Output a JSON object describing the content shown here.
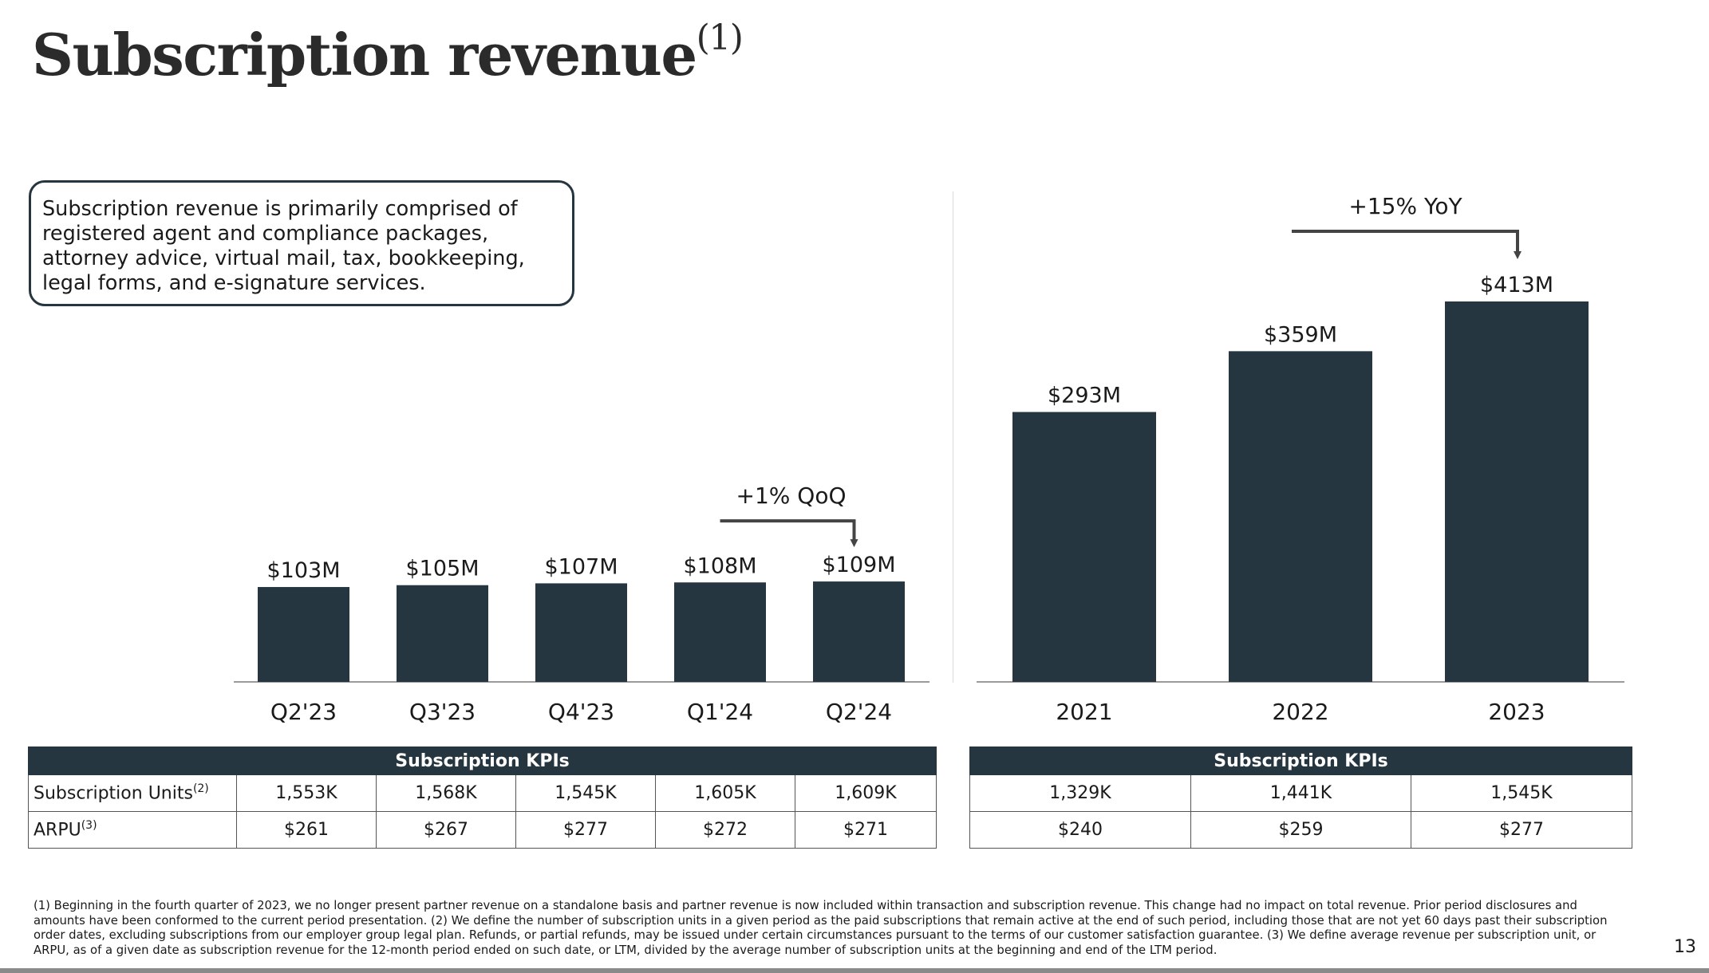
{
  "slide": {
    "title": "Subscription revenue",
    "title_note": "(1)",
    "description_lines": [
      "Subscription revenue is primarily comprised of",
      "registered agent and compliance packages,",
      "attorney advice, virtual mail, tax, bookkeeping,",
      "legal forms, and e-signature services."
    ],
    "page_number": "13",
    "footnote": "(1) Beginning in the fourth quarter of 2023, we no longer present partner revenue on a standalone basis and partner revenue is now included within transaction and subscription revenue. This change had no impact on total revenue. Prior period disclosures and amounts have been conformed to the current period presentation. (2) We define the number of subscription units in a given period as the paid subscriptions that remain active at the end of such period, including those that are not yet 60 days past their subscription order dates, excluding subscriptions from our employer group legal plan. Refunds, or partial refunds, may be issued under certain circumstances pursuant to the terms of our customer satisfaction guarantee. (3) We define average revenue per subscription unit, or ARPU, as of a given date as subscription revenue for the 12-month period ended on such date, or LTM, divided by the average number of subscription units at the beginning and end of the LTM period."
  },
  "colors": {
    "bar": "#263640",
    "text": "#1a1a1a",
    "axis": "#9a9a9a"
  },
  "chart_data": [
    {
      "type": "bar",
      "categories": [
        "Q2'23",
        "Q3'23",
        "Q4'23",
        "Q1'24",
        "Q2'24"
      ],
      "values": [
        103,
        105,
        107,
        108,
        109
      ],
      "value_labels": [
        "$103M",
        "$105M",
        "$107M",
        "$108M",
        "$109M"
      ],
      "annotation": {
        "text": "+1% QoQ",
        "from": "Q1'24",
        "to": "Q2'24"
      },
      "unit": "$M",
      "ylim": [
        0,
        450
      ],
      "title": "",
      "xlabel": "",
      "ylabel": "",
      "grid": false,
      "legend": "none"
    },
    {
      "type": "bar",
      "categories": [
        "2021",
        "2022",
        "2023"
      ],
      "values": [
        293,
        359,
        413
      ],
      "value_labels": [
        "$293M",
        "$359M",
        "$413M"
      ],
      "annotation": {
        "text": "+15% YoY",
        "from": "2022",
        "to": "2023"
      },
      "unit": "$M",
      "ylim": [
        0,
        450
      ],
      "title": "",
      "xlabel": "",
      "ylabel": "",
      "grid": false,
      "legend": "none"
    }
  ],
  "kpi_tables": {
    "quarterly": {
      "header": "Subscription KPIs",
      "rows": [
        {
          "label": "Subscription Units",
          "note": "(2)",
          "values": [
            "1,553K",
            "1,568K",
            "1,545K",
            "1,605K",
            "1,609K"
          ]
        },
        {
          "label": "ARPU",
          "note": "(3)",
          "values": [
            "$261",
            "$267",
            "$277",
            "$272",
            "$271"
          ]
        }
      ]
    },
    "annual": {
      "header": "Subscription KPIs",
      "rows": [
        {
          "values": [
            "1,329K",
            "1,441K",
            "1,545K"
          ]
        },
        {
          "values": [
            "$240",
            "$259",
            "$277"
          ]
        }
      ]
    }
  }
}
